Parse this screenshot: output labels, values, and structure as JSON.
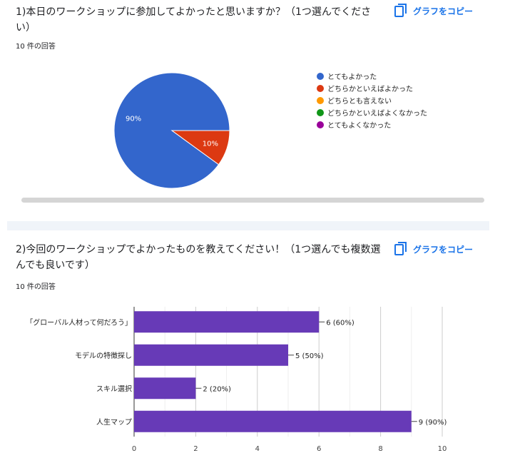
{
  "questions": [
    {
      "title": "1)本日のワークショップに参加してよかったと思いますか？（1つ選んでください）",
      "copy_label": "グラフをコピー",
      "response_count": "10 件の回答"
    },
    {
      "title": "2)今回のワークショップでよかったものを教えてください！（1つ選んでも複数選んでも良いです）",
      "copy_label": "グラフをコピー",
      "response_count": "10 件の回答"
    }
  ],
  "icons": {
    "copy": "copy-icon"
  },
  "colors": {
    "accent": "#1a73e8",
    "pie": [
      "#3366cc",
      "#dc3912",
      "#ff9900",
      "#109618",
      "#990099"
    ],
    "bar": "#673ab7"
  },
  "chart_data": [
    {
      "type": "pie",
      "categories": [
        "とてもよかった",
        "どちらかといえばよかった",
        "どちらとも言えない",
        "どちらかといえばよくなかった",
        "とてもよくなかった"
      ],
      "values": [
        9,
        1,
        0,
        0,
        0
      ],
      "slice_labels": [
        "90%",
        "10%",
        "",
        "",
        ""
      ],
      "legend_position": "right"
    },
    {
      "type": "bar",
      "orientation": "horizontal",
      "categories": [
        "「グローバル人材って何だろう」",
        "モデルの特徴探し",
        "スキル選択",
        "人生マップ"
      ],
      "values": [
        6,
        5,
        2,
        9
      ],
      "data_labels": [
        "6 (60%)",
        "5 (50%)",
        "2 (20%)",
        "9 (90%)"
      ],
      "xlim": [
        0,
        10
      ],
      "xticks": [
        "0",
        "2",
        "4",
        "6",
        "8",
        "10"
      ],
      "grid": true
    }
  ]
}
